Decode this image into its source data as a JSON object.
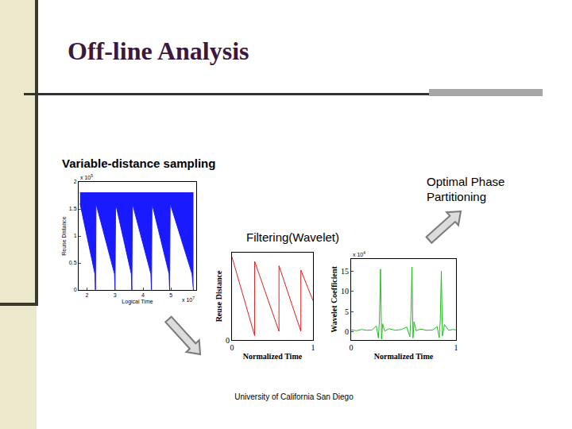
{
  "slide": {
    "title": "Off-line Analysis",
    "labels": [
      [
        "Variable-distance sampling"
      ],
      [
        "Filtering(Wavelet)"
      ],
      [
        "Optimal Phase",
        "Partitioning"
      ]
    ],
    "footer": "University of California San Diego"
  },
  "chart_data": [
    {
      "type": "area",
      "x_label": "Logical Time",
      "y_label": "Reuse Distance",
      "annotations": [
        {
          "axis": "y",
          "text": "x 10",
          "sup": "5"
        },
        {
          "axis": "x",
          "text": "x 10",
          "sup": "7"
        }
      ],
      "x": [
        1.75,
        2.28,
        2.3,
        2.32,
        2.98,
        3.0,
        3.02,
        3.58,
        3.6,
        3.62,
        4.28,
        4.3,
        4.32,
        4.93,
        4.95,
        4.97,
        5.75,
        5.8
      ],
      "series": [
        {
          "color": "#1a1aff",
          "values": [
            1.8,
            1.8,
            1.8,
            1.8,
            1.8,
            1.8,
            1.8,
            1.8,
            1.8,
            1.8,
            1.8,
            1.8,
            1.8,
            1.8,
            1.8,
            1.8,
            1.8,
            1.8
          ]
        },
        {
          "color": "#1a1aff",
          "values": [
            1.6,
            0.3,
            0,
            1.6,
            0.3,
            0,
            1.6,
            0.3,
            0,
            1.6,
            0.3,
            0,
            1.6,
            0.3,
            0,
            1.6,
            0.3,
            0
          ]
        }
      ],
      "xlim": [
        1.7,
        5.9
      ],
      "xticks": [
        2,
        3,
        4,
        5
      ],
      "ylim": [
        0,
        2
      ],
      "yticks": [
        0,
        0.5,
        1,
        1.5,
        2
      ],
      "grid": false
    },
    {
      "type": "line",
      "x_label": "Normalized Time",
      "y_label": "Reuse Distance",
      "x": [
        0,
        0.28,
        0.28,
        0.58,
        0.58,
        0.85,
        0.85,
        1
      ],
      "series": [
        {
          "color": "#dd2222",
          "values": [
            0.95,
            0.05,
            0.9,
            0.1,
            0.85,
            0.1,
            0.8,
            0.45
          ]
        }
      ],
      "xlim": [
        0,
        1
      ],
      "xticks": [
        0,
        1
      ],
      "ylim": [
        0,
        1
      ],
      "yticks": [
        0
      ],
      "grid": false
    },
    {
      "type": "line",
      "x_label": "Normalized Time",
      "y_label": "Wavelet Coefficient",
      "annotations": [
        {
          "axis": "y",
          "text": "x 10",
          "sup": "4"
        }
      ],
      "x": [
        0,
        0.05,
        0.1,
        0.15,
        0.2,
        0.24,
        0.26,
        0.27,
        0.28,
        0.29,
        0.3,
        0.32,
        0.36,
        0.42,
        0.48,
        0.53,
        0.56,
        0.57,
        0.58,
        0.59,
        0.6,
        0.62,
        0.66,
        0.72,
        0.78,
        0.82,
        0.84,
        0.85,
        0.86,
        0.87,
        0.89,
        0.93,
        0.97,
        1
      ],
      "series": [
        {
          "color": "#22bb22",
          "values": [
            0.5,
            0.3,
            0.6,
            0.4,
            0.5,
            1.5,
            -1.5,
            3,
            15.5,
            -1.8,
            2,
            0.2,
            0.8,
            0.4,
            0.6,
            1.2,
            -1.2,
            4,
            16,
            -1.5,
            2.5,
            0.3,
            0.7,
            0.4,
            0.5,
            1.3,
            -1.4,
            3,
            15,
            -1,
            1.8,
            0.4,
            0.6,
            0.5
          ]
        }
      ],
      "xlim": [
        0,
        1
      ],
      "xticks": [
        0,
        1
      ],
      "ylim": [
        -2,
        18
      ],
      "yticks": [
        0,
        5,
        10,
        15
      ],
      "grid": false
    }
  ]
}
